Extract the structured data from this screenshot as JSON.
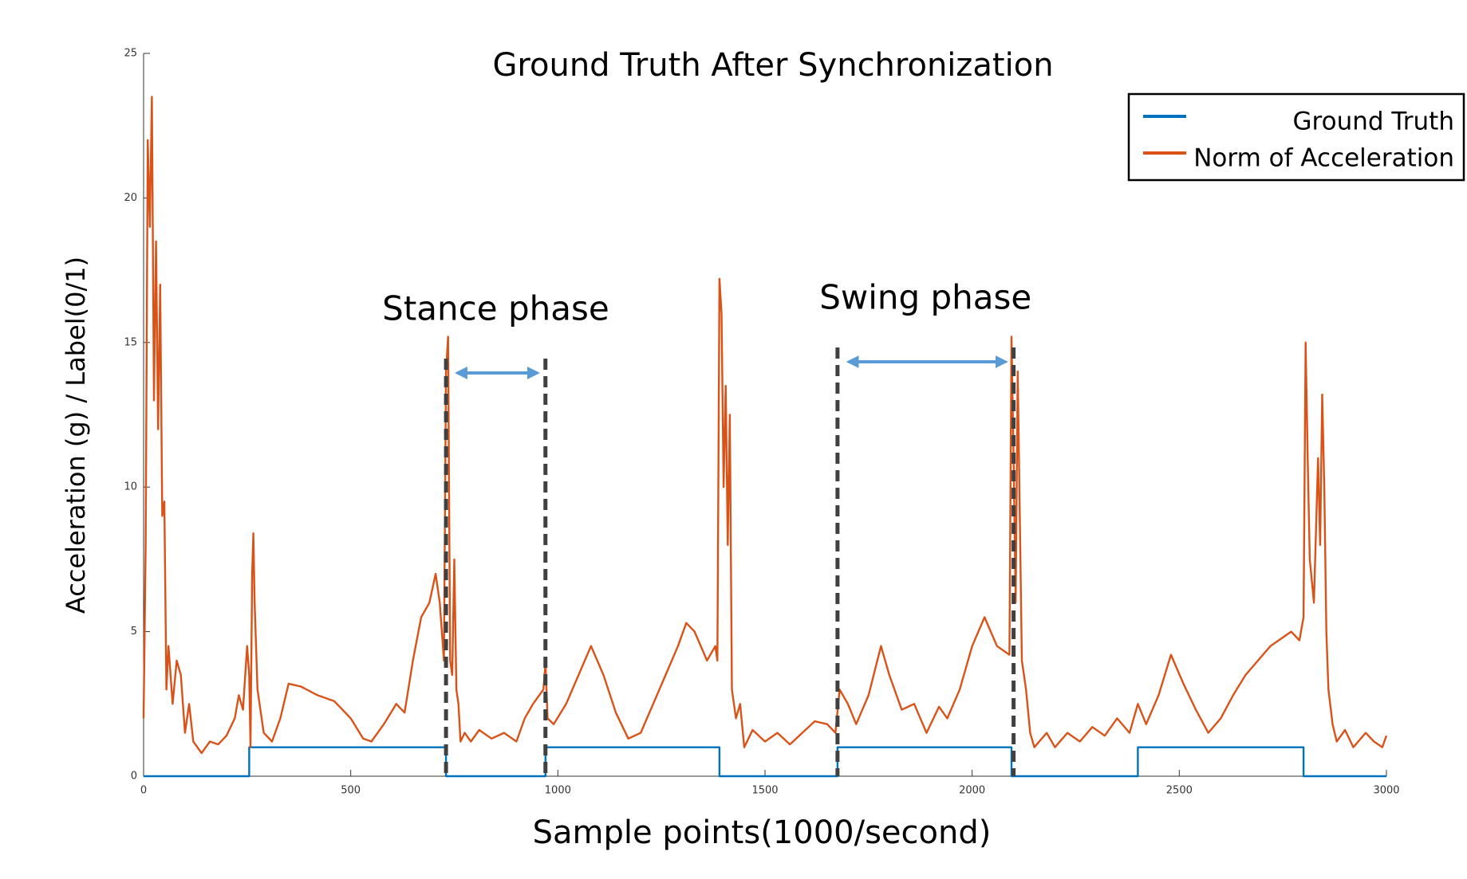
{
  "chart_data": {
    "type": "line",
    "title": "Ground Truth After Synchronization",
    "x_label": "Sample points(1000/second)",
    "y_label": "Acceleration (g) / Label(0/1)",
    "xlim": [
      0,
      3000
    ],
    "ylim": [
      0,
      25
    ],
    "xticks": [
      0,
      500,
      1000,
      1500,
      2000,
      2500,
      3000
    ],
    "yticks": [
      0,
      5,
      10,
      15,
      20,
      25
    ],
    "grid": false,
    "legend": "upper right",
    "annotations": [
      {
        "text": "Stance phase",
        "x_range": [
          730,
          970
        ]
      },
      {
        "text": "Swing phase",
        "x_range": [
          1675,
          2100
        ]
      }
    ],
    "series": [
      {
        "name": "Ground Truth",
        "color": "#0072bd",
        "x": [
          0,
          255,
          255,
          730,
          730,
          970,
          970,
          1390,
          1390,
          1675,
          1675,
          2095,
          2095,
          2400,
          2400,
          2800,
          2800,
          3000
        ],
        "values": [
          0,
          0,
          1,
          1,
          0,
          0,
          1,
          1,
          0,
          0,
          1,
          1,
          0,
          0,
          1,
          1,
          0,
          0
        ]
      },
      {
        "name": "Norm of Acceleration",
        "color": "#d95319",
        "x": [
          0,
          5,
          10,
          15,
          20,
          25,
          30,
          35,
          40,
          45,
          50,
          55,
          60,
          70,
          80,
          90,
          100,
          110,
          120,
          140,
          160,
          180,
          200,
          220,
          230,
          240,
          250,
          255,
          258,
          262,
          265,
          268,
          275,
          290,
          310,
          330,
          350,
          380,
          420,
          460,
          500,
          530,
          550,
          580,
          610,
          630,
          650,
          670,
          690,
          705,
          715,
          725,
          730,
          735,
          740,
          745,
          750,
          755,
          760,
          765,
          775,
          790,
          810,
          840,
          870,
          900,
          920,
          940,
          960,
          965,
          970,
          975,
          990,
          1020,
          1050,
          1080,
          1110,
          1140,
          1170,
          1200,
          1230,
          1260,
          1290,
          1310,
          1330,
          1360,
          1380,
          1385,
          1390,
          1395,
          1400,
          1405,
          1410,
          1415,
          1420,
          1430,
          1440,
          1450,
          1470,
          1500,
          1530,
          1560,
          1590,
          1620,
          1650,
          1670,
          1680,
          1700,
          1720,
          1750,
          1780,
          1800,
          1830,
          1860,
          1890,
          1920,
          1940,
          1970,
          2000,
          2030,
          2060,
          2090,
          2095,
          2100,
          2105,
          2110,
          2115,
          2120,
          2130,
          2140,
          2150,
          2180,
          2200,
          2230,
          2260,
          2290,
          2320,
          2350,
          2380,
          2400,
          2420,
          2450,
          2480,
          2510,
          2540,
          2570,
          2600,
          2630,
          2660,
          2690,
          2720,
          2750,
          2770,
          2790,
          2800,
          2805,
          2810,
          2815,
          2825,
          2835,
          2840,
          2845,
          2850,
          2855,
          2860,
          2870,
          2880,
          2900,
          2920,
          2950,
          2970,
          2990,
          3000
        ],
        "values": [
          2,
          8,
          22,
          19,
          23.5,
          13,
          18.5,
          12,
          17,
          9,
          9.5,
          3,
          4.5,
          2.5,
          4,
          3.5,
          1.5,
          2.5,
          1.2,
          0.8,
          1.2,
          1.1,
          1.4,
          2,
          2.8,
          2.3,
          4.5,
          3.5,
          1,
          7,
          8.4,
          6,
          3,
          1.5,
          1.2,
          2,
          3.2,
          3.1,
          2.8,
          2.6,
          2,
          1.3,
          1.2,
          1.8,
          2.5,
          2.2,
          4,
          5.5,
          6,
          7,
          6,
          4,
          14,
          15.2,
          4,
          3.5,
          7.5,
          3,
          2.5,
          1.2,
          1.5,
          1.2,
          1.6,
          1.3,
          1.5,
          1.2,
          2,
          2.5,
          2.9,
          3,
          3.9,
          2,
          1.8,
          2.5,
          3.5,
          4.5,
          3.5,
          2.2,
          1.3,
          1.5,
          2.5,
          3.5,
          4.5,
          5.3,
          5,
          4,
          4.5,
          4,
          17.2,
          16,
          10,
          13.5,
          8,
          12.5,
          3,
          2,
          2.5,
          1,
          1.6,
          1.2,
          1.5,
          1.1,
          1.5,
          1.9,
          1.8,
          1.5,
          3,
          2.5,
          1.8,
          2.8,
          4.5,
          3.5,
          2.3,
          2.5,
          1.5,
          2.4,
          2,
          3,
          4.5,
          5.5,
          4.5,
          4.2,
          15.2,
          11,
          6,
          14,
          9,
          4,
          3,
          1.5,
          1,
          1.5,
          1,
          1.5,
          1.2,
          1.7,
          1.4,
          2,
          1.5,
          2.5,
          1.8,
          2.8,
          4.2,
          3.2,
          2.3,
          1.5,
          2,
          2.8,
          3.5,
          4,
          4.5,
          4.8,
          5,
          4.7,
          5.5,
          15,
          11,
          7.5,
          6,
          11,
          8,
          13.2,
          10,
          5,
          3,
          1.8,
          1.2,
          1.6,
          1,
          1.5,
          1.2,
          1,
          1.4
        ]
      }
    ]
  }
}
